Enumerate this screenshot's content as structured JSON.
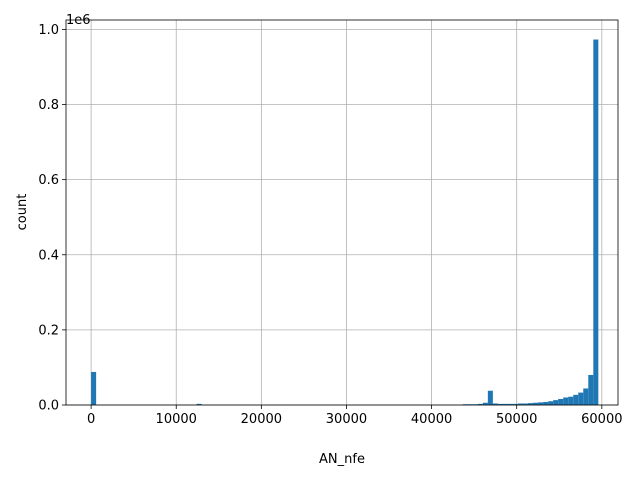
{
  "chart_data": {
    "type": "bar",
    "xlabel": "AN_nfe",
    "ylabel": "count",
    "y_offset_label": "1e6",
    "xlim": [
      -2950,
      61900
    ],
    "ylim": [
      0,
      1.025
    ],
    "x_ticks": [
      0,
      10000,
      20000,
      30000,
      40000,
      50000,
      60000
    ],
    "x_tick_labels": [
      "0",
      "10000",
      "20000",
      "30000",
      "40000",
      "50000",
      "60000"
    ],
    "y_ticks": [
      0,
      0.2,
      0.4,
      0.6,
      0.8,
      1.0
    ],
    "y_tick_labels": [
      "0.0",
      "0.2",
      "0.4",
      "0.6",
      "0.8",
      "1.0"
    ],
    "grid": true,
    "bar_color": "#1f77b4",
    "bin_width": 590,
    "bins": [
      {
        "x": 0,
        "value": 0.088
      },
      {
        "x": 12390,
        "value": 0.003
      },
      {
        "x": 43660,
        "value": 0.002
      },
      {
        "x": 44250,
        "value": 0.002
      },
      {
        "x": 44840,
        "value": 0.002
      },
      {
        "x": 45430,
        "value": 0.003
      },
      {
        "x": 46020,
        "value": 0.006
      },
      {
        "x": 46610,
        "value": 0.038
      },
      {
        "x": 47200,
        "value": 0.004
      },
      {
        "x": 47790,
        "value": 0.003
      },
      {
        "x": 48380,
        "value": 0.003
      },
      {
        "x": 48970,
        "value": 0.003
      },
      {
        "x": 49560,
        "value": 0.003
      },
      {
        "x": 50150,
        "value": 0.004
      },
      {
        "x": 50740,
        "value": 0.004
      },
      {
        "x": 51330,
        "value": 0.005
      },
      {
        "x": 51920,
        "value": 0.006
      },
      {
        "x": 52510,
        "value": 0.007
      },
      {
        "x": 53100,
        "value": 0.008
      },
      {
        "x": 53690,
        "value": 0.01
      },
      {
        "x": 54280,
        "value": 0.013
      },
      {
        "x": 54870,
        "value": 0.016
      },
      {
        "x": 55460,
        "value": 0.02
      },
      {
        "x": 56050,
        "value": 0.022
      },
      {
        "x": 56640,
        "value": 0.027
      },
      {
        "x": 57230,
        "value": 0.033
      },
      {
        "x": 57820,
        "value": 0.044
      },
      {
        "x": 58410,
        "value": 0.08
      },
      {
        "x": 59000,
        "value": 0.973
      }
    ]
  }
}
